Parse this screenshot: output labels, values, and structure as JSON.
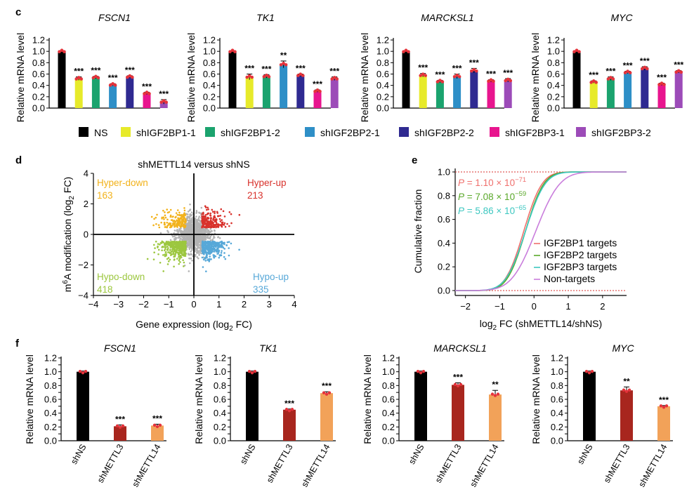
{
  "panels": {
    "c": "c",
    "d": "d",
    "e": "e",
    "f": "f"
  },
  "colors": {
    "NS": "#000000",
    "shIGF2BP1-1": "#e7ea2a",
    "shIGF2BP1-2": "#1ba36e",
    "shIGF2BP2-1": "#2e8fc7",
    "shIGF2BP2-2": "#2f2a91",
    "shIGF2BP3-1": "#e8158e",
    "shIGF2BP3-2": "#9c4bb8",
    "shMETTL3": "#a8261e",
    "shMETTL14": "#f2a259",
    "dots": "#e5333b"
  },
  "chart_data": [
    {
      "panel": "c",
      "type": "bar",
      "title": "FSCN1",
      "ylabel": "Relative mRNA level",
      "ylim": [
        0,
        1.2
      ],
      "yticks": [
        "0.0",
        "0.2",
        "0.4",
        "0.6",
        "0.8",
        "1.0",
        "1.2"
      ],
      "categories": [
        "NS",
        "shIGF2BP1-1",
        "shIGF2BP1-2",
        "shIGF2BP2-1",
        "shIGF2BP2-2",
        "shIGF2BP3-1",
        "shIGF2BP3-2"
      ],
      "values": [
        1.0,
        0.52,
        0.54,
        0.41,
        0.55,
        0.26,
        0.11
      ],
      "errors": [
        0.01,
        0.03,
        0.02,
        0.02,
        0.02,
        0.02,
        0.04
      ],
      "significance": [
        "",
        "***",
        "***",
        "***",
        "***",
        "***",
        "***"
      ]
    },
    {
      "panel": "c",
      "type": "bar",
      "title": "TK1",
      "ylabel": "Relative mRNA level",
      "ylim": [
        0,
        1.2
      ],
      "yticks": [
        "0.0",
        "0.2",
        "0.4",
        "0.6",
        "0.8",
        "1.0",
        "1.2"
      ],
      "categories": [
        "NS",
        "shIGF2BP1-1",
        "shIGF2BP1-2",
        "shIGF2BP2-1",
        "shIGF2BP2-2",
        "shIGF2BP3-1",
        "shIGF2BP3-2"
      ],
      "values": [
        1.0,
        0.55,
        0.56,
        0.77,
        0.58,
        0.3,
        0.52
      ],
      "errors": [
        0.01,
        0.05,
        0.03,
        0.06,
        0.02,
        0.02,
        0.03
      ],
      "significance": [
        "",
        "***",
        "***",
        "**",
        "***",
        "***",
        "***"
      ]
    },
    {
      "panel": "c",
      "type": "bar",
      "title": "MARCKSL1",
      "ylabel": "Relative mRNA level",
      "ylim": [
        0,
        1.2
      ],
      "yticks": [
        "0.0",
        "0.2",
        "0.4",
        "0.6",
        "0.8",
        "1.0",
        "1.2"
      ],
      "categories": [
        "NS",
        "shIGF2BP1-1",
        "shIGF2BP1-2",
        "shIGF2BP2-1",
        "shIGF2BP2-2",
        "shIGF2BP3-1",
        "shIGF2BP3-2"
      ],
      "values": [
        1.0,
        0.58,
        0.47,
        0.56,
        0.66,
        0.48,
        0.49
      ],
      "errors": [
        0.01,
        0.03,
        0.02,
        0.04,
        0.04,
        0.02,
        0.03
      ],
      "significance": [
        "",
        "***",
        "***",
        "***",
        "***",
        "***",
        "***"
      ]
    },
    {
      "panel": "c",
      "type": "bar",
      "title": "MYC",
      "ylabel": "Relative mRNA level",
      "ylim": [
        0,
        1.2
      ],
      "yticks": [
        "0.0",
        "0.2",
        "0.4",
        "0.6",
        "0.8",
        "1.0",
        "1.2"
      ],
      "categories": [
        "NS",
        "shIGF2BP1-1",
        "shIGF2BP1-2",
        "shIGF2BP2-1",
        "shIGF2BP2-2",
        "shIGF2BP3-1",
        "shIGF2BP3-2"
      ],
      "values": [
        1.0,
        0.46,
        0.52,
        0.63,
        0.7,
        0.42,
        0.64
      ],
      "errors": [
        0.01,
        0.02,
        0.03,
        0.02,
        0.03,
        0.02,
        0.02
      ],
      "significance": [
        "",
        "***",
        "***",
        "***",
        "***",
        "***",
        "***"
      ]
    },
    {
      "panel": "d",
      "type": "scatter",
      "title": "shMETTL14 versus shNS",
      "xlabel": "Gene expression (log2 FC)",
      "ylabel": "m6A modification (log2 FC)",
      "xlim": [
        -4,
        4
      ],
      "ylim": [
        -4,
        4
      ],
      "xticks": [
        "−4",
        "−3",
        "−2",
        "−1",
        "0",
        "1",
        "2",
        "3",
        "4"
      ],
      "yticks": [
        "−4",
        "−2",
        "0",
        "2",
        "4"
      ],
      "quadrants": [
        {
          "name": "Hyper-down",
          "count": "163",
          "color": "#f2b21b"
        },
        {
          "name": "Hyper-up",
          "count": "213",
          "color": "#d8322c"
        },
        {
          "name": "Hypo-down",
          "count": "418",
          "color": "#9cc73f"
        },
        {
          "name": "Hypo-up",
          "count": "335",
          "color": "#57a8d8"
        }
      ],
      "background_color": "#b3b3b3"
    },
    {
      "panel": "e",
      "type": "line",
      "xlabel": "log2 FC (shMETTL14/shNS)",
      "ylabel": "Cumulative fraction",
      "xlim": [
        -2.3,
        2.7
      ],
      "ylim": [
        0,
        1
      ],
      "xticks": [
        "−2",
        "−1",
        "0",
        "1",
        "2"
      ],
      "yticks": [
        "0.0",
        "0.2",
        "0.4",
        "0.6",
        "0.8",
        "1.0"
      ],
      "pvalues": [
        {
          "label": "P = 1.10 × 10−71",
          "base": "1.10 × 10",
          "exp": "−71",
          "color": "#ef6f6c"
        },
        {
          "label": "P = 7.08 × 10−59",
          "base": "7.08 × 10",
          "exp": "−59",
          "color": "#5aa82a"
        },
        {
          "label": "P = 5.86 × 10−65",
          "base": "5.86 × 10",
          "exp": "−65",
          "color": "#3cc7c0"
        }
      ],
      "series": [
        {
          "name": "IGF2BP1 targets",
          "color": "#ef6f6c",
          "mean": -0.3,
          "sd": 0.42
        },
        {
          "name": "IGF2BP2 targets",
          "color": "#5aa82a",
          "mean": -0.25,
          "sd": 0.42
        },
        {
          "name": "IGF2BP3 targets",
          "color": "#3cc7c0",
          "mean": -0.25,
          "sd": 0.45
        },
        {
          "name": "Non-targets",
          "color": "#c97ddc",
          "mean": 0.05,
          "sd": 0.55
        }
      ]
    },
    {
      "panel": "f",
      "type": "bar",
      "title": "FSCN1",
      "ylabel": "Relative mRNA level",
      "ylim": [
        0,
        1.2
      ],
      "yticks": [
        "0.0",
        "0.1",
        "0.2",
        "0.3",
        "0.4",
        "0.5",
        "0.6",
        "0.7",
        "0.8",
        "0.9",
        "1.0",
        "1.1",
        "1.2"
      ],
      "categories": [
        "shNS",
        "shMETTL3",
        "shMETTL14"
      ],
      "values": [
        1.0,
        0.21,
        0.22
      ],
      "errors": [
        0.01,
        0.02,
        0.02
      ],
      "significance": [
        "",
        "***",
        "***"
      ]
    },
    {
      "panel": "f",
      "type": "bar",
      "title": "TK1",
      "ylabel": "Relative mRNA level",
      "ylim": [
        0,
        1.2
      ],
      "yticks": [
        "0.0",
        "0.1",
        "0.2",
        "0.3",
        "0.4",
        "0.5",
        "0.6",
        "0.7",
        "0.8",
        "0.9",
        "1.0",
        "1.1",
        "1.2"
      ],
      "categories": [
        "shNS",
        "shMETTL3",
        "shMETTL14"
      ],
      "values": [
        1.0,
        0.45,
        0.69
      ],
      "errors": [
        0.01,
        0.01,
        0.02
      ],
      "significance": [
        "",
        "***",
        "***"
      ]
    },
    {
      "panel": "f",
      "type": "bar",
      "title": "MARCKSL1",
      "ylabel": "Relative mRNA level",
      "ylim": [
        0,
        1.2
      ],
      "yticks": [
        "0.0",
        "0.1",
        "0.2",
        "0.3",
        "0.4",
        "0.5",
        "0.6",
        "0.7",
        "0.8",
        "0.9",
        "1.0",
        "1.1",
        "1.2"
      ],
      "categories": [
        "shNS",
        "shMETTL3",
        "shMETTL14"
      ],
      "values": [
        1.0,
        0.81,
        0.67
      ],
      "errors": [
        0.01,
        0.03,
        0.06
      ],
      "significance": [
        "",
        "***",
        "**"
      ]
    },
    {
      "panel": "f",
      "type": "bar",
      "title": "MYC",
      "ylabel": "Relative mRNA level",
      "ylim": [
        0,
        1.2
      ],
      "yticks": [
        "0.0",
        "0.1",
        "0.2",
        "0.3",
        "0.4",
        "0.5",
        "0.6",
        "0.7",
        "0.8",
        "0.9",
        "1.0",
        "1.1",
        "1.2"
      ],
      "categories": [
        "shNS",
        "shMETTL3",
        "shMETTL14"
      ],
      "values": [
        1.0,
        0.73,
        0.5
      ],
      "errors": [
        0.01,
        0.05,
        0.01
      ],
      "significance": [
        "",
        "**",
        "***"
      ]
    }
  ]
}
